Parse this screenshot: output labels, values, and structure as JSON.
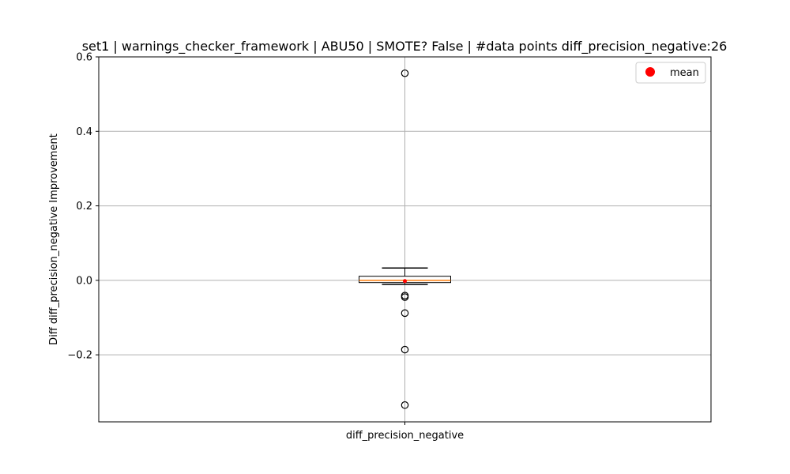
{
  "chart_data": {
    "type": "box",
    "title": "set1 | warnings_checker_framework | ABU50 | SMOTE? False | #data points diff_precision_negative:26",
    "xlabel": "",
    "ylabel": "Diff diff_precision_negative Improvement",
    "categories": [
      "diff_precision_negative"
    ],
    "ylim": [
      -0.38,
      0.6
    ],
    "yticks": [
      {
        "value": -0.2,
        "label": "−0.2"
      },
      {
        "value": 0.0,
        "label": "0.0"
      },
      {
        "value": 0.2,
        "label": "0.2"
      },
      {
        "value": 0.4,
        "label": "0.4"
      },
      {
        "value": 0.6,
        "label": "0.6"
      }
    ],
    "grid": true,
    "legend": {
      "position": "top-right",
      "entries": [
        {
          "label": "mean",
          "color": "#ff0000",
          "marker": "circle"
        }
      ]
    },
    "box": {
      "whisker_low": -0.011,
      "q1": -0.006,
      "median": 0.0,
      "q3": 0.011,
      "whisker_high": 0.033,
      "mean": -0.002,
      "outliers": [
        0.556,
        -0.041,
        -0.045,
        -0.088,
        -0.186,
        -0.335
      ]
    },
    "colors": {
      "median": "#ff7f0e",
      "mean": "#ff0000",
      "grid": "#b0b0b0",
      "box": "#000000"
    }
  }
}
